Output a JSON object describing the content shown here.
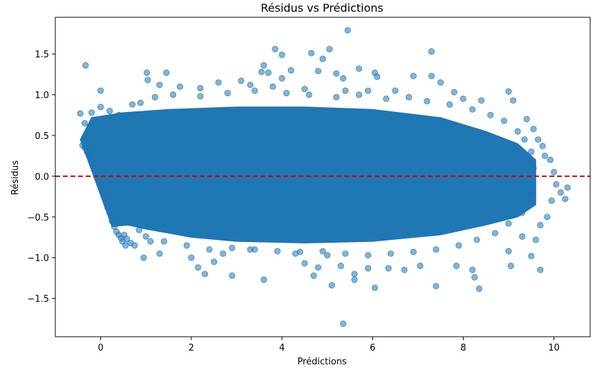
{
  "chart_data": {
    "type": "scatter",
    "title": "Résidus vs Prédictions",
    "xlabel": "Prédictions",
    "ylabel": "Résidus",
    "xlim": [
      -1.0,
      10.8
    ],
    "ylim": [
      -1.97,
      1.95
    ],
    "xticks": [
      0,
      2,
      4,
      6,
      8,
      10
    ],
    "yticks": [
      -1.5,
      -1.0,
      -0.5,
      0.0,
      0.5,
      1.0,
      1.5
    ],
    "xtick_labels": [
      "0",
      "2",
      "4",
      "6",
      "8",
      "10"
    ],
    "ytick_labels": [
      "−1.5",
      "−1.0",
      "−0.5",
      "0.0",
      "0.5",
      "1.0",
      "1.5"
    ],
    "reference_line": {
      "y": 0.0,
      "style": "dashed",
      "color": "#dd0000"
    },
    "point_color": "#1f77b4",
    "grid": false,
    "legend": "none",
    "dense_band": [
      [
        -0.45,
        0.45
      ],
      [
        -0.2,
        0.72
      ],
      [
        0.5,
        0.78
      ],
      [
        1.5,
        0.82
      ],
      [
        3.0,
        0.85
      ],
      [
        4.5,
        0.85
      ],
      [
        6.0,
        0.82
      ],
      [
        7.5,
        0.72
      ],
      [
        8.5,
        0.55
      ],
      [
        9.2,
        0.4
      ],
      [
        9.6,
        0.2
      ],
      [
        9.6,
        -0.35
      ],
      [
        9.2,
        -0.5
      ],
      [
        8.5,
        -0.6
      ],
      [
        7.5,
        -0.72
      ],
      [
        6.0,
        -0.8
      ],
      [
        4.5,
        -0.82
      ],
      [
        3.0,
        -0.8
      ],
      [
        2.0,
        -0.75
      ],
      [
        1.0,
        -0.65
      ],
      [
        0.6,
        -0.6
      ],
      [
        0.25,
        -0.62
      ]
    ],
    "outliers": [
      [
        -0.33,
        1.36
      ],
      [
        0.0,
        1.05
      ],
      [
        -0.45,
        0.77
      ],
      [
        0.88,
        0.9
      ],
      [
        1.02,
        1.27
      ],
      [
        1.04,
        1.18
      ],
      [
        1.45,
        1.27
      ],
      [
        1.3,
        1.12
      ],
      [
        1.75,
        1.1
      ],
      [
        2.2,
        1.08
      ],
      [
        2.6,
        1.15
      ],
      [
        2.0,
        -1.0
      ],
      [
        2.15,
        -1.12
      ],
      [
        2.3,
        -1.2
      ],
      [
        2.5,
        -1.05
      ],
      [
        2.7,
        -0.95
      ],
      [
        2.9,
        -1.22
      ],
      [
        3.3,
        -0.9
      ],
      [
        3.6,
        -1.27
      ],
      [
        3.1,
        1.17
      ],
      [
        3.3,
        1.12
      ],
      [
        3.55,
        1.28
      ],
      [
        3.6,
        1.36
      ],
      [
        3.7,
        1.27
      ],
      [
        3.8,
        1.1
      ],
      [
        3.85,
        1.56
      ],
      [
        4.0,
        1.49
      ],
      [
        4.2,
        1.3
      ],
      [
        4.0,
        1.2
      ],
      [
        4.5,
        1.07
      ],
      [
        4.65,
        1.51
      ],
      [
        4.8,
        1.29
      ],
      [
        4.9,
        1.44
      ],
      [
        5.05,
        1.56
      ],
      [
        5.2,
        1.26
      ],
      [
        5.45,
        1.79
      ],
      [
        5.35,
        1.2
      ],
      [
        5.4,
        1.05
      ],
      [
        5.7,
        1.32
      ],
      [
        5.9,
        1.05
      ],
      [
        6.05,
        1.27
      ],
      [
        6.1,
        1.22
      ],
      [
        6.5,
        1.05
      ],
      [
        6.9,
        1.23
      ],
      [
        7.3,
        1.53
      ],
      [
        7.3,
        1.23
      ],
      [
        7.5,
        1.15
      ],
      [
        7.8,
        1.03
      ],
      [
        8.0,
        0.95
      ],
      [
        8.4,
        0.93
      ],
      [
        9.0,
        1.04
      ],
      [
        9.1,
        0.93
      ],
      [
        9.4,
        0.7
      ],
      [
        9.55,
        0.58
      ],
      [
        9.65,
        0.45
      ],
      [
        9.75,
        0.37
      ],
      [
        9.8,
        0.25
      ],
      [
        9.92,
        0.2
      ],
      [
        10.0,
        0.05
      ],
      [
        10.05,
        -0.1
      ],
      [
        10.15,
        -0.2
      ],
      [
        10.25,
        -0.28
      ],
      [
        10.3,
        -0.14
      ],
      [
        9.95,
        -0.3
      ],
      [
        9.85,
        -0.5
      ],
      [
        9.7,
        -0.6
      ],
      [
        9.6,
        -0.78
      ],
      [
        9.5,
        -0.98
      ],
      [
        9.7,
        -1.15
      ],
      [
        9.3,
        -0.74
      ],
      [
        9.0,
        -0.92
      ],
      [
        9.05,
        -1.1
      ],
      [
        8.35,
        -1.38
      ],
      [
        8.25,
        -1.24
      ],
      [
        8.2,
        -1.15
      ],
      [
        7.85,
        -1.1
      ],
      [
        7.4,
        -1.35
      ],
      [
        7.05,
        -1.1
      ],
      [
        6.7,
        -1.15
      ],
      [
        6.35,
        -1.13
      ],
      [
        6.05,
        -1.37
      ],
      [
        5.9,
        -1.13
      ],
      [
        5.6,
        -1.2
      ],
      [
        5.6,
        -1.27
      ],
      [
        5.35,
        -1.81
      ],
      [
        5.1,
        -1.34
      ],
      [
        4.8,
        -1.12
      ],
      [
        4.7,
        -1.22
      ],
      [
        4.5,
        -1.07
      ],
      [
        4.3,
        -0.95
      ],
      [
        5.0,
        -0.97
      ],
      [
        5.3,
        -1.1
      ],
      [
        0.95,
        -1.0
      ],
      [
        1.3,
        -0.95
      ],
      [
        1.1,
        -0.8
      ],
      [
        0.75,
        -0.85
      ]
    ],
    "scatter": [
      [
        -0.4,
        0.38
      ],
      [
        -0.35,
        0.35
      ],
      [
        -0.3,
        0.3
      ],
      [
        -0.25,
        0.25
      ],
      [
        -0.2,
        0.18
      ],
      [
        -0.15,
        0.1
      ],
      [
        -0.1,
        0.05
      ],
      [
        -0.05,
        -0.02
      ],
      [
        0.0,
        -0.1
      ],
      [
        0.05,
        -0.18
      ],
      [
        0.1,
        -0.28
      ],
      [
        0.15,
        -0.38
      ],
      [
        0.2,
        -0.45
      ],
      [
        0.25,
        -0.55
      ],
      [
        0.3,
        -0.62
      ],
      [
        0.35,
        -0.68
      ],
      [
        0.4,
        -0.72
      ],
      [
        0.45,
        -0.76
      ],
      [
        0.48,
        -0.8
      ],
      [
        0.52,
        -0.72
      ],
      [
        0.58,
        -0.77
      ],
      [
        0.66,
        -0.82
      ],
      [
        -0.35,
        0.65
      ],
      [
        -0.2,
        0.78
      ],
      [
        0.0,
        0.85
      ],
      [
        0.2,
        0.8
      ],
      [
        0.4,
        0.75
      ],
      [
        0.7,
        0.88
      ],
      [
        1.2,
        0.97
      ],
      [
        1.6,
        1.0
      ],
      [
        2.2,
        0.98
      ],
      [
        2.8,
        1.02
      ],
      [
        3.4,
        1.05
      ],
      [
        4.1,
        1.02
      ],
      [
        4.6,
        1.0
      ],
      [
        5.2,
        0.97
      ],
      [
        5.7,
        1.0
      ],
      [
        6.3,
        0.95
      ],
      [
        6.8,
        0.97
      ],
      [
        7.2,
        0.92
      ],
      [
        7.7,
        0.88
      ],
      [
        8.2,
        0.82
      ],
      [
        8.6,
        0.75
      ],
      [
        8.9,
        0.68
      ],
      [
        9.2,
        0.55
      ],
      [
        9.35,
        0.45
      ],
      [
        9.5,
        0.3
      ],
      [
        9.55,
        0.1
      ],
      [
        9.5,
        -0.2
      ],
      [
        9.3,
        -0.45
      ],
      [
        9.0,
        -0.58
      ],
      [
        8.7,
        -0.7
      ],
      [
        8.3,
        -0.78
      ],
      [
        7.9,
        -0.85
      ],
      [
        7.4,
        -0.9
      ],
      [
        6.9,
        -0.93
      ],
      [
        6.4,
        -0.95
      ],
      [
        5.9,
        -0.97
      ],
      [
        5.4,
        -0.95
      ],
      [
        4.9,
        -0.92
      ],
      [
        4.4,
        -0.93
      ],
      [
        3.9,
        -0.92
      ],
      [
        3.4,
        -0.9
      ],
      [
        2.9,
        -0.88
      ],
      [
        2.4,
        -0.9
      ],
      [
        1.9,
        -0.85
      ],
      [
        1.4,
        -0.8
      ],
      [
        1.0,
        -0.74
      ],
      [
        0.85,
        -0.66
      ],
      [
        0.55,
        -0.85
      ]
    ]
  }
}
